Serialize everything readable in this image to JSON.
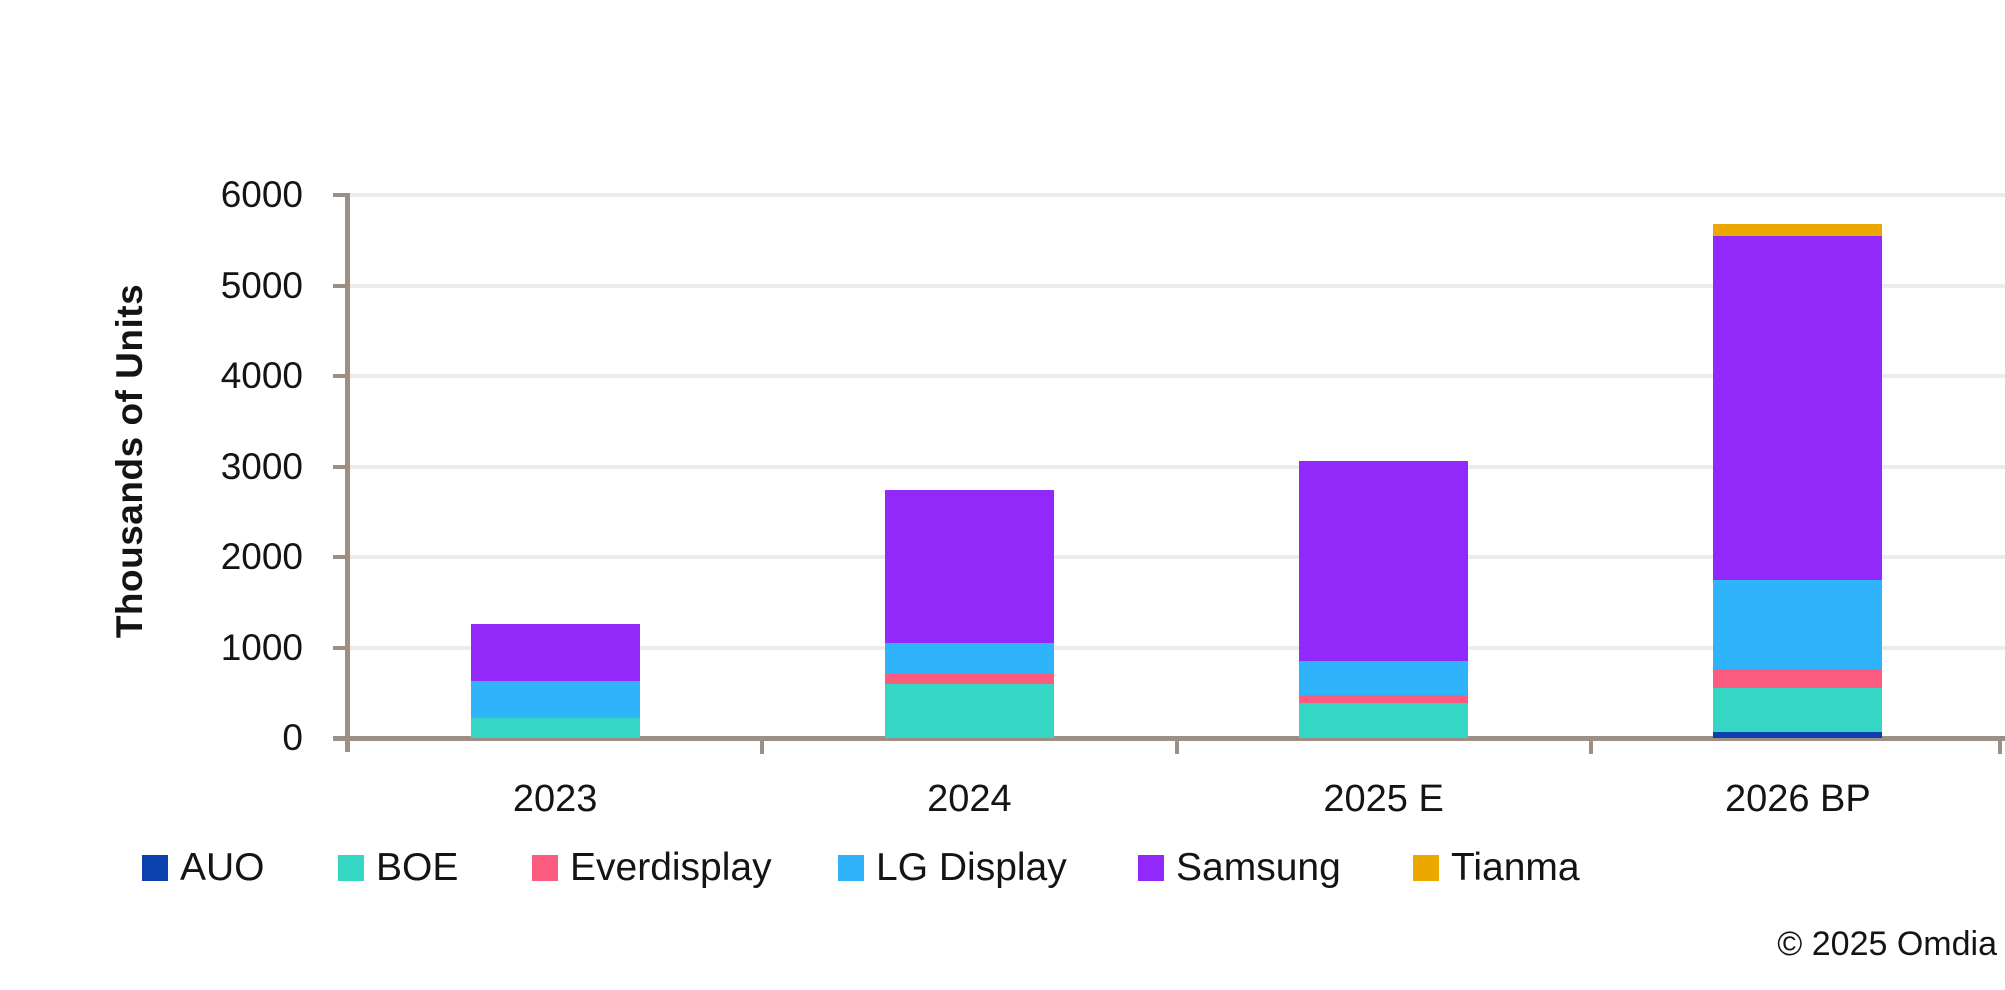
{
  "chart_data": {
    "type": "bar",
    "stacked": true,
    "title": "",
    "xlabel": "",
    "ylabel": "Thousands of Units",
    "ylim": [
      0,
      6000
    ],
    "yticks": [
      0,
      1000,
      2000,
      3000,
      4000,
      5000,
      6000
    ],
    "grid": "horizontal",
    "legend_position": "bottom",
    "categories": [
      "2023",
      "2024",
      "2025 E",
      "2026 BP"
    ],
    "series": [
      {
        "name": "AUO",
        "color": "#0B41AD",
        "values": [
          0,
          0,
          0,
          65
        ]
      },
      {
        "name": "BOE",
        "color": "#35D6C4",
        "values": [
          225,
          600,
          390,
          490
        ]
      },
      {
        "name": "Everdisplay",
        "color": "#FB5B7E",
        "values": [
          0,
          110,
          90,
          205
        ]
      },
      {
        "name": "LG Display",
        "color": "#2FB3FA",
        "values": [
          405,
          340,
          375,
          985
        ]
      },
      {
        "name": "Samsung",
        "color": "#9228F9",
        "values": [
          630,
          1690,
          2205,
          3800
        ]
      },
      {
        "name": "Tianma",
        "color": "#EBA900",
        "values": [
          0,
          0,
          0,
          130
        ]
      }
    ]
  },
  "footer": {
    "copyright": "© 2025 Omdia"
  },
  "style": {
    "axis_color": "#9C8F85",
    "gridline_color": "#ECECEC",
    "text_color": "#141414"
  }
}
